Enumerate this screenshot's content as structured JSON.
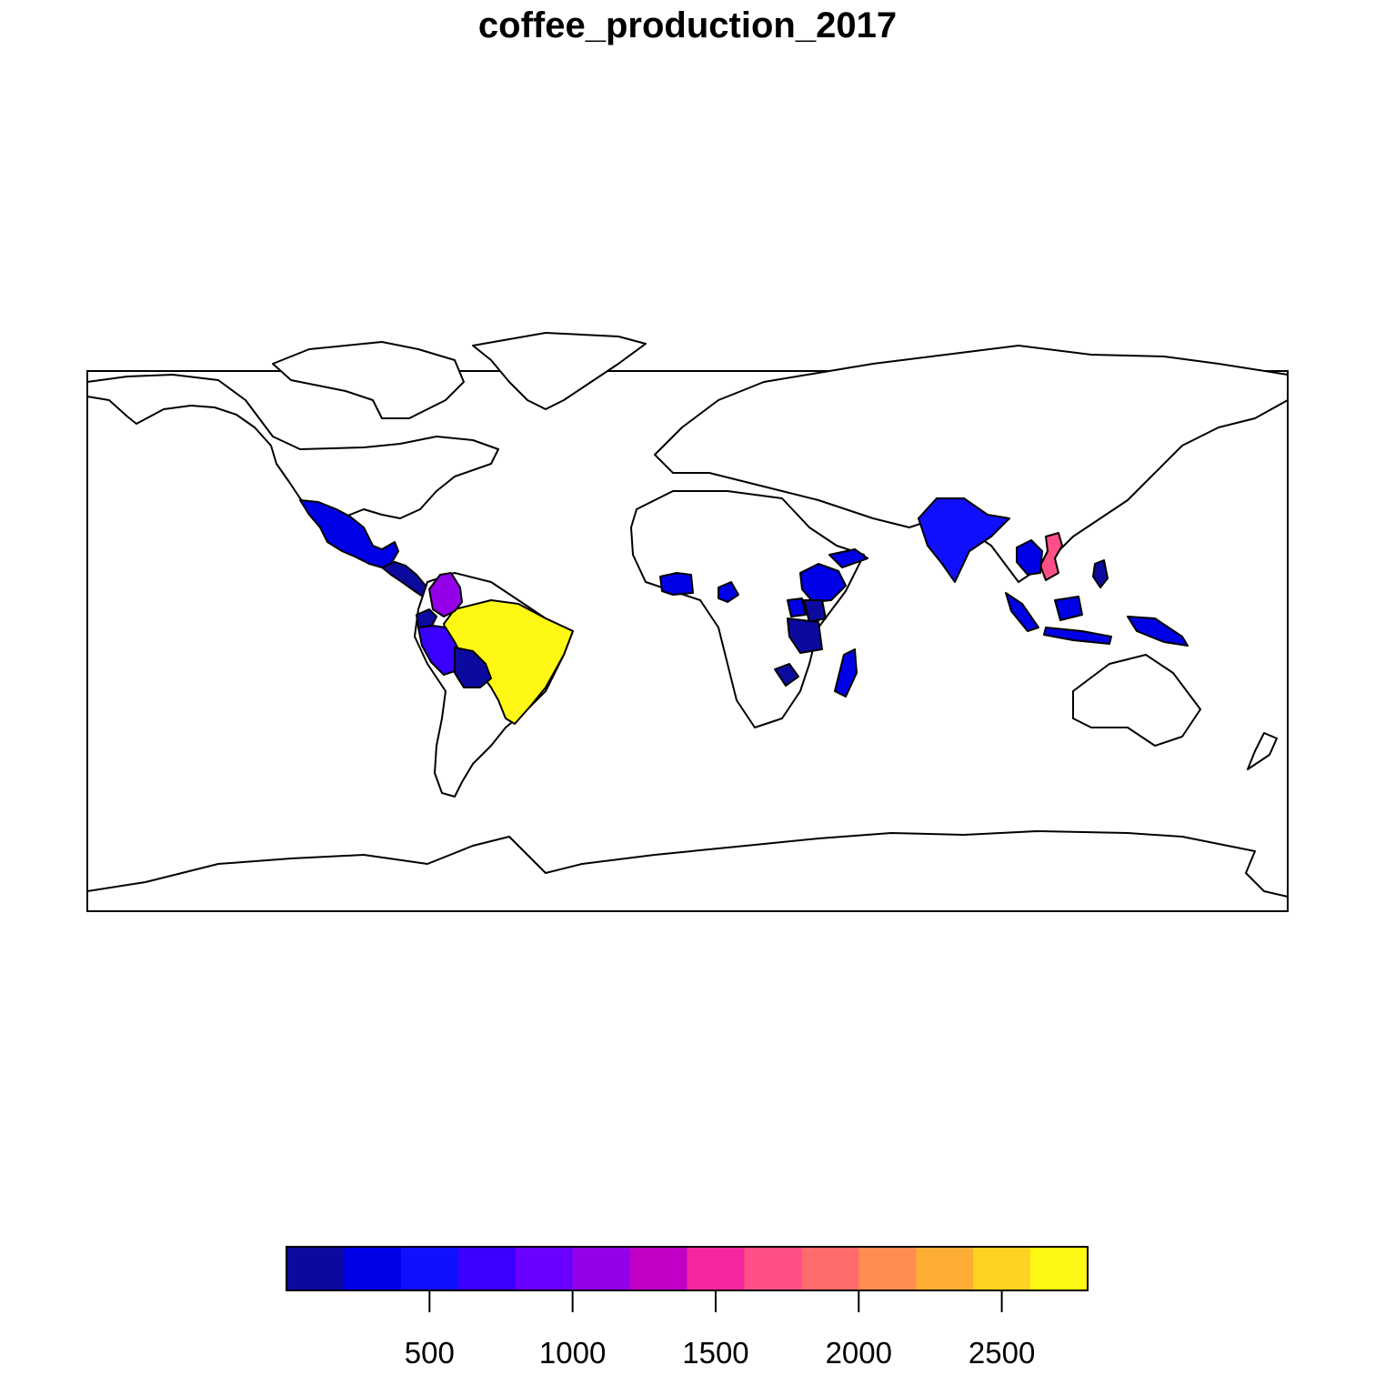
{
  "title": "coffee_production_2017",
  "legend": {
    "min": 0,
    "max": 2800,
    "step": 200,
    "ticks": [
      500,
      1000,
      1500,
      2000,
      2500
    ],
    "colors": [
      "#0C0A9E",
      "#0000E6",
      "#1010FF",
      "#3A00FF",
      "#6A00FF",
      "#9400E8",
      "#C000C4",
      "#F5279F",
      "#FF4F86",
      "#FF6B6B",
      "#FF8C50",
      "#FFAE35",
      "#FFD120",
      "#FFF714"
    ]
  },
  "regions": [
    {
      "name": "brazil",
      "color": "#FFF714"
    },
    {
      "name": "vietnam",
      "color": "#FF4F86"
    },
    {
      "name": "colombia",
      "color": "#9400E8"
    },
    {
      "name": "peru",
      "color": "#3A00FF"
    },
    {
      "name": "mexico",
      "color": "#0000E6"
    },
    {
      "name": "central-america",
      "color": "#0C0A9E"
    },
    {
      "name": "ecuador",
      "color": "#0C0A9E"
    },
    {
      "name": "bolivia",
      "color": "#0C0A9E"
    },
    {
      "name": "india",
      "color": "#1010FF"
    },
    {
      "name": "indonesia",
      "color": "#0000E6"
    },
    {
      "name": "papua-new-guinea",
      "color": "#0000E6"
    },
    {
      "name": "ethiopia",
      "color": "#0000E6"
    },
    {
      "name": "yemen",
      "color": "#0000E6"
    },
    {
      "name": "uganda",
      "color": "#0000E6"
    },
    {
      "name": "kenya",
      "color": "#0C0A9E"
    },
    {
      "name": "tanzania",
      "color": "#0C0A9E"
    },
    {
      "name": "cote-divoire",
      "color": "#0000E6"
    },
    {
      "name": "cameroon",
      "color": "#0000E6"
    },
    {
      "name": "madagascar",
      "color": "#0000E6"
    },
    {
      "name": "zimbabwe",
      "color": "#0C0A9E"
    },
    {
      "name": "laos-cambodia",
      "color": "#0000E6"
    },
    {
      "name": "philippines",
      "color": "#0C0A9E"
    }
  ]
}
